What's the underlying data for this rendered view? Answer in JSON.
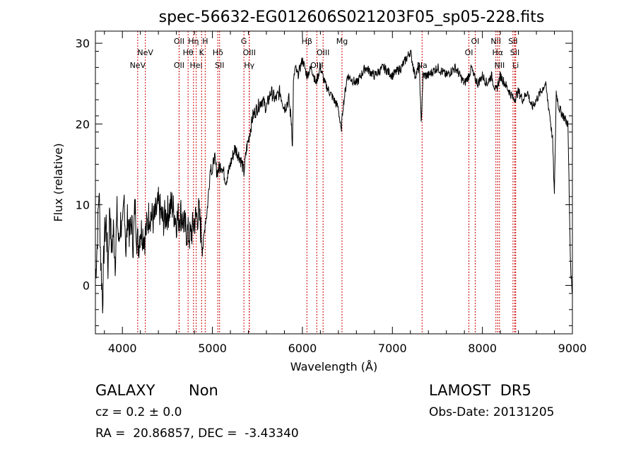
{
  "chart_data": {
    "type": "line",
    "title": "spec-56632-EG012606S021203F05_sp05-228.fits",
    "xlabel": "Wavelength (Å)",
    "ylabel": "Flux (relative)",
    "xlim": [
      3700,
      9000
    ],
    "ylim": [
      -6,
      31.5
    ],
    "x_ticks": [
      "4000",
      "5000",
      "6000",
      "7000",
      "8000",
      "9000"
    ],
    "y_ticks": [
      "0",
      "10",
      "20",
      "30"
    ],
    "grid": false,
    "line_color": "#000000",
    "marker_color": "#cc0000",
    "spectrum": {
      "x": [
        3700,
        3720,
        3740,
        3760,
        3780,
        3800,
        3820,
        3840,
        3860,
        3880,
        3900,
        3920,
        3940,
        3960,
        3980,
        4000,
        4020,
        4040,
        4060,
        4080,
        4100,
        4120,
        4140,
        4160,
        4180,
        4200,
        4250,
        4300,
        4350,
        4400,
        4450,
        4500,
        4550,
        4600,
        4650,
        4700,
        4750,
        4780,
        4800,
        4850,
        4880,
        4900,
        4920,
        4940,
        4960,
        4980,
        5000,
        5020,
        5050,
        5100,
        5150,
        5180,
        5200,
        5250,
        5300,
        5330,
        5350,
        5380,
        5400,
        5450,
        5500,
        5550,
        5600,
        5650,
        5700,
        5750,
        5800,
        5850,
        5880,
        5890,
        5900,
        5920,
        5950,
        6000,
        6050,
        6100,
        6150,
        6200,
        6250,
        6300,
        6350,
        6400,
        6430,
        6450,
        6500,
        6600,
        6700,
        6800,
        6900,
        7000,
        7100,
        7200,
        7250,
        7300,
        7320,
        7340,
        7400,
        7500,
        7600,
        7700,
        7800,
        7850,
        7880,
        7900,
        7950,
        8000,
        8050,
        8100,
        8150,
        8200,
        8250,
        8300,
        8350,
        8400,
        8450,
        8500,
        8550,
        8600,
        8650,
        8700,
        8750,
        8780,
        8800,
        8820,
        8850,
        8900,
        8950,
        8980,
        9000
      ],
      "y": [
        1,
        5,
        12,
        3,
        -2,
        6,
        8,
        2,
        10,
        4,
        7,
        3,
        9,
        5,
        8,
        6,
        11,
        4,
        9,
        6,
        8,
        5,
        10,
        6,
        5,
        7,
        6,
        9,
        8,
        10,
        8,
        9,
        10,
        8,
        9,
        7,
        6,
        7,
        8,
        9,
        6,
        5,
        8,
        9,
        12,
        15,
        14,
        16,
        14,
        15,
        13,
        14,
        15,
        17,
        16,
        15,
        14,
        17,
        18,
        21,
        22,
        23,
        22,
        24,
        23,
        24,
        22,
        23,
        20,
        17,
        25,
        27,
        26,
        28,
        26,
        27,
        25,
        27,
        25,
        24,
        23,
        22,
        19,
        22,
        26,
        25,
        27,
        26,
        27,
        26,
        27,
        29,
        26,
        27,
        20,
        26,
        26,
        27,
        26,
        27,
        25,
        26,
        27,
        26,
        25,
        26,
        25,
        26,
        24,
        26,
        25,
        24,
        23,
        24,
        23,
        24,
        22,
        23,
        24,
        25,
        21,
        18,
        11,
        24,
        22,
        21,
        20,
        2,
        -1
      ]
    },
    "lines": [
      {
        "label": "NeV",
        "x": 4170,
        "row": 3
      },
      {
        "label": "NeV",
        "x": 4255,
        "row": 2
      },
      {
        "label": "OII",
        "x": 4630,
        "row": 1
      },
      {
        "label": "OII",
        "x": 4630,
        "row": 3
      },
      {
        "label": "Hθ",
        "x": 4730,
        "row": 2
      },
      {
        "label": "Hη",
        "x": 4790,
        "row": 1
      },
      {
        "label": "HeI",
        "x": 4820,
        "row": 3
      },
      {
        "label": "K",
        "x": 4880,
        "row": 2
      },
      {
        "label": "H",
        "x": 4920,
        "row": 1
      },
      {
        "label": "Hδ",
        "x": 5060,
        "row": 2
      },
      {
        "label": "SII",
        "x": 5080,
        "row": 3
      },
      {
        "label": "G",
        "x": 5350,
        "row": 1
      },
      {
        "label": "OIII",
        "x": 5410,
        "row": 2
      },
      {
        "label": "Hγ",
        "x": 5410,
        "row": 3
      },
      {
        "label": "Hβ",
        "x": 6050,
        "row": 1
      },
      {
        "label": "OIII",
        "x": 6160,
        "row": 3
      },
      {
        "label": "OIII",
        "x": 6230,
        "row": 2
      },
      {
        "label": "Mg",
        "x": 6440,
        "row": 1
      },
      {
        "label": "Na",
        "x": 7330,
        "row": 3
      },
      {
        "label": "OI",
        "x": 7850,
        "row": 2
      },
      {
        "label": "OI",
        "x": 7920,
        "row": 1
      },
      {
        "label": "NII",
        "x": 8150,
        "row": 1
      },
      {
        "label": "Hα",
        "x": 8170,
        "row": 2
      },
      {
        "label": "NII",
        "x": 8190,
        "row": 3
      },
      {
        "label": "SII",
        "x": 8340,
        "row": 1
      },
      {
        "label": "SII",
        "x": 8360,
        "row": 2
      },
      {
        "label": "Li",
        "x": 8370,
        "row": 3
      }
    ]
  },
  "info": {
    "class": "GALAXY",
    "subclass": "Non",
    "cz": "cz = 0.2 ± 0.0",
    "coords": "RA =  20.86857, DEC =  -3.43340",
    "survey": "LAMOST  DR5",
    "obs_date": "Obs-Date: 20131205"
  }
}
